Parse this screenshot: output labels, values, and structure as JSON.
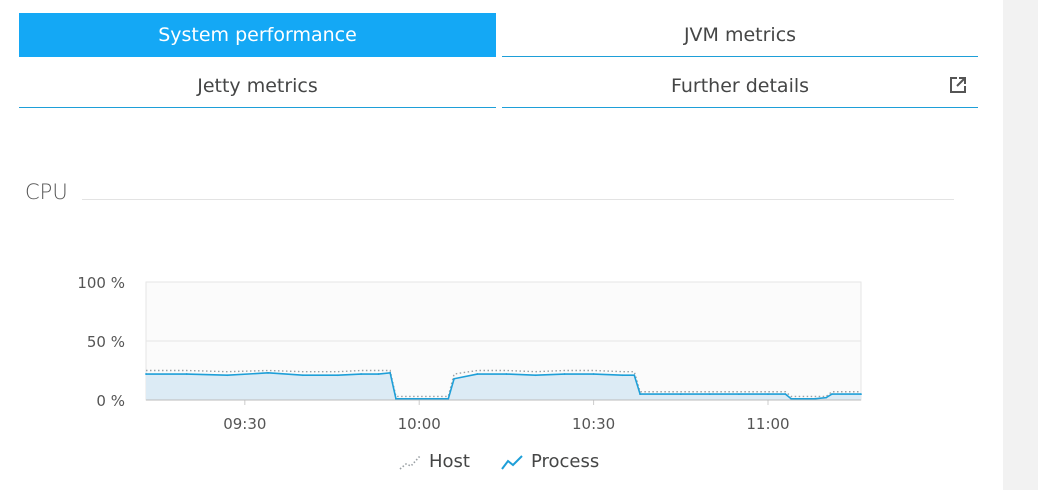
{
  "tabs": [
    {
      "label": "System performance",
      "active": true
    },
    {
      "label": "JVM metrics",
      "active": false
    },
    {
      "label": "Jetty metrics",
      "active": false
    },
    {
      "label": "Further details",
      "active": false,
      "icon": "external-link-icon"
    }
  ],
  "section": {
    "title": "CPU"
  },
  "colors": {
    "accent": "#14a8f5",
    "process_line": "#1e9fd8",
    "process_fill": "#dcebf5",
    "host_line": "#9aa0a4"
  },
  "chart_data": {
    "type": "area",
    "ylim": [
      0,
      100
    ],
    "y_ticks": [
      "100 %",
      "50 %",
      "0 %"
    ],
    "y_tick_values": [
      100,
      50,
      0
    ],
    "x_range": [
      "09:13",
      "11:16"
    ],
    "x_ticks": [
      "09:30",
      "10:00",
      "10:30",
      "11:00"
    ],
    "grid": true,
    "legend_position": "bottom",
    "series": [
      {
        "name": "Host",
        "style": "dotted",
        "x": [
          "09:13",
          "09:20",
          "09:27",
          "09:34",
          "09:40",
          "09:46",
          "09:50",
          "09:53",
          "09:55",
          "09:56",
          "10:04",
          "10:05",
          "10:06",
          "10:10",
          "10:15",
          "10:20",
          "10:25",
          "10:30",
          "10:35",
          "10:37",
          "10:38",
          "10:45",
          "10:50",
          "10:55",
          "11:00",
          "11:03",
          "11:04",
          "11:08",
          "11:10",
          "11:11",
          "11:16"
        ],
        "values": [
          25,
          25,
          24,
          25,
          24,
          24,
          25,
          25,
          25,
          3,
          3,
          3,
          22,
          25,
          25,
          24,
          25,
          25,
          24,
          24,
          7,
          7,
          7,
          7,
          7,
          7,
          3,
          3,
          3,
          7,
          7
        ]
      },
      {
        "name": "Process",
        "style": "line",
        "x": [
          "09:13",
          "09:20",
          "09:27",
          "09:34",
          "09:40",
          "09:46",
          "09:50",
          "09:53",
          "09:55",
          "09:56",
          "10:04",
          "10:05",
          "10:06",
          "10:10",
          "10:15",
          "10:20",
          "10:25",
          "10:30",
          "10:35",
          "10:37",
          "10:38",
          "10:45",
          "10:50",
          "10:55",
          "11:00",
          "11:03",
          "11:04",
          "11:08",
          "11:10",
          "11:11",
          "11:16"
        ],
        "values": [
          22,
          22,
          21,
          23,
          21,
          21,
          22,
          22,
          23,
          1,
          1,
          1,
          18,
          22,
          22,
          21,
          22,
          22,
          21,
          21,
          5,
          5,
          5,
          5,
          5,
          5,
          1,
          1,
          2,
          5,
          5
        ]
      }
    ]
  }
}
